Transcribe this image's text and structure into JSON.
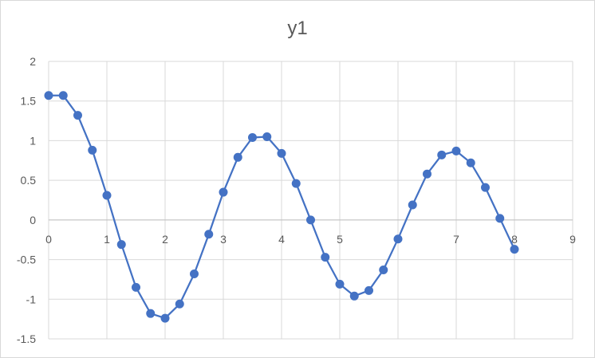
{
  "chart_data": {
    "type": "scatter",
    "title": "y1",
    "xlabel": "",
    "ylabel": "",
    "xlim": [
      0,
      9
    ],
    "ylim": [
      -1.5,
      2
    ],
    "x_ticks": [
      "0",
      "1",
      "2",
      "3",
      "4",
      "5",
      "6",
      "7",
      "8",
      "9"
    ],
    "y_ticks": [
      "2",
      "1.5",
      "1",
      "0.5",
      "0",
      "-0.5",
      "-1",
      "-1.5"
    ],
    "grid": true,
    "legend": "none",
    "series": [
      {
        "color": "#4472c4",
        "style": "line-with-markers",
        "x": [
          0,
          0.25,
          0.5,
          0.75,
          1,
          1.25,
          1.5,
          1.75,
          2,
          2.25,
          2.5,
          2.75,
          3,
          3.25,
          3.5,
          3.75,
          4,
          4.25,
          4.5,
          4.75,
          5,
          5.25,
          5.5,
          5.75,
          6,
          6.25,
          6.5,
          6.75,
          7,
          7.25,
          7.5,
          7.75,
          8
        ],
        "y": [
          1.57,
          1.57,
          1.32,
          0.88,
          0.31,
          -0.31,
          -0.85,
          -1.18,
          -1.24,
          -1.06,
          -0.68,
          -0.18,
          0.35,
          0.79,
          1.04,
          1.05,
          0.84,
          0.46,
          0.0,
          -0.47,
          -0.81,
          -0.96,
          -0.89,
          -0.63,
          -0.24,
          0.19,
          0.58,
          0.82,
          0.87,
          0.72,
          0.41,
          0.02,
          -0.37
        ]
      }
    ]
  }
}
